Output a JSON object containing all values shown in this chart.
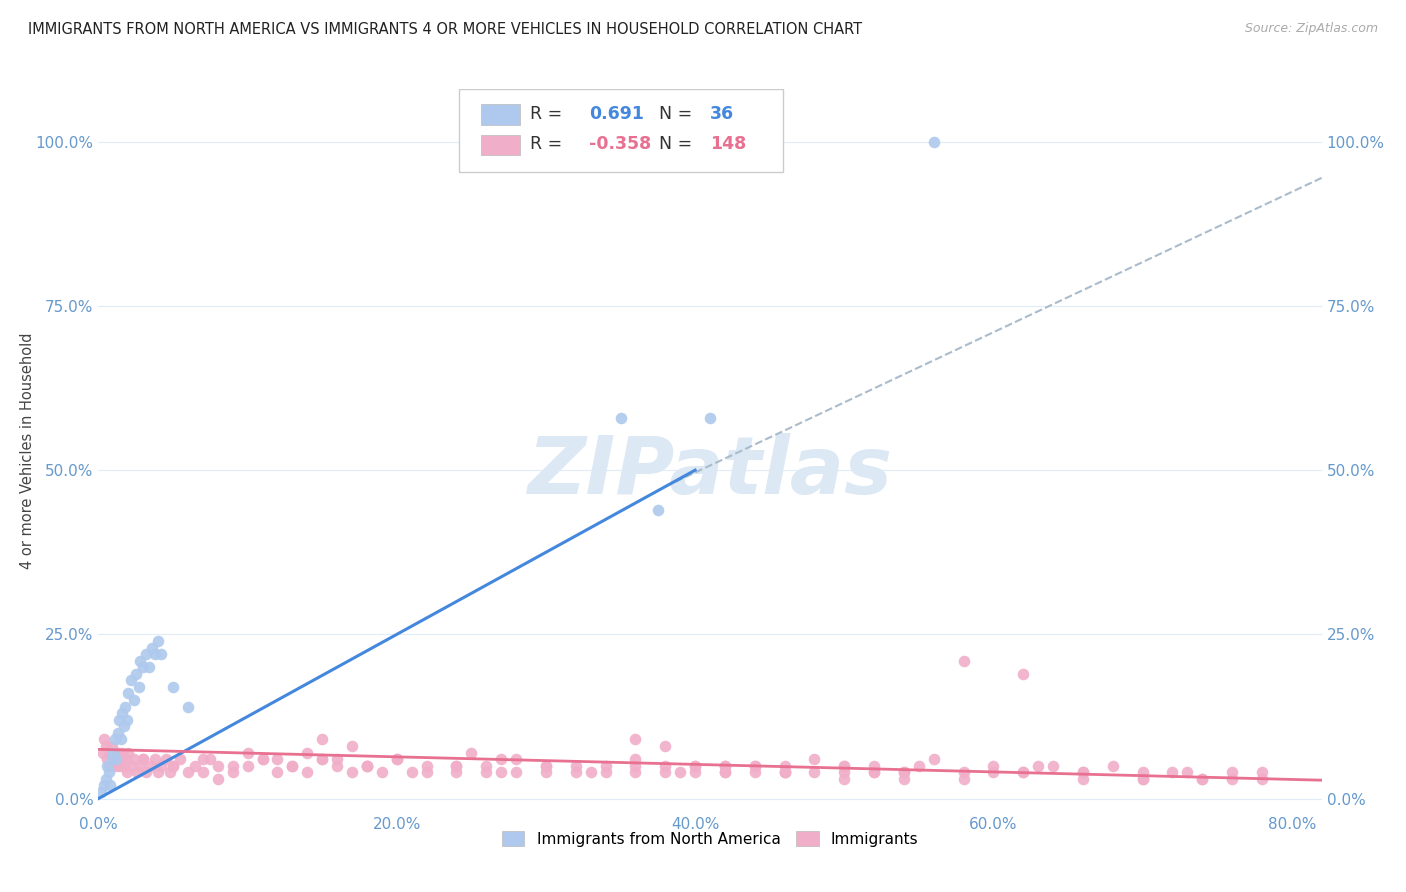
{
  "title": "IMMIGRANTS FROM NORTH AMERICA VS IMMIGRANTS 4 OR MORE VEHICLES IN HOUSEHOLD CORRELATION CHART",
  "source": "Source: ZipAtlas.com",
  "ylabel": "4 or more Vehicles in Household",
  "xlim": [
    0.0,
    0.82
  ],
  "ylim": [
    -0.02,
    1.08
  ],
  "xtick_labels": [
    "0.0%",
    "20.0%",
    "40.0%",
    "60.0%",
    "80.0%"
  ],
  "xtick_values": [
    0.0,
    0.2,
    0.4,
    0.6,
    0.8
  ],
  "ytick_labels": [
    "0.0%",
    "25.0%",
    "50.0%",
    "75.0%",
    "100.0%"
  ],
  "ytick_values": [
    0.0,
    0.25,
    0.5,
    0.75,
    1.0
  ],
  "blue_color": "#aec9ed",
  "pink_color": "#f0aec8",
  "blue_line_color": "#4488dd",
  "pink_line_color": "#e87090",
  "dashed_line_color": "#aabccc",
  "grid_color": "#e0ecf8",
  "tick_label_color": "#6699cc",
  "title_color": "#222222",
  "watermark": "ZIPatlas",
  "watermark_color": "#dce8f4",
  "blue_scatter_x": [
    0.002,
    0.004,
    0.005,
    0.006,
    0.007,
    0.008,
    0.009,
    0.01,
    0.011,
    0.012,
    0.013,
    0.014,
    0.015,
    0.016,
    0.017,
    0.018,
    0.019,
    0.02,
    0.022,
    0.024,
    0.025,
    0.027,
    0.028,
    0.03,
    0.032,
    0.034,
    0.036,
    0.038,
    0.04,
    0.042,
    0.05,
    0.06,
    0.35,
    0.375,
    0.41,
    0.56
  ],
  "blue_scatter_y": [
    0.01,
    0.02,
    0.03,
    0.05,
    0.04,
    0.02,
    0.06,
    0.07,
    0.09,
    0.06,
    0.1,
    0.12,
    0.09,
    0.13,
    0.11,
    0.14,
    0.12,
    0.16,
    0.18,
    0.15,
    0.19,
    0.17,
    0.21,
    0.2,
    0.22,
    0.2,
    0.23,
    0.22,
    0.24,
    0.22,
    0.17,
    0.14,
    0.58,
    0.44,
    0.58,
    1.0
  ],
  "pink_scatter_x": [
    0.003,
    0.004,
    0.005,
    0.006,
    0.007,
    0.008,
    0.009,
    0.01,
    0.011,
    0.012,
    0.013,
    0.014,
    0.015,
    0.016,
    0.017,
    0.018,
    0.019,
    0.02,
    0.022,
    0.024,
    0.026,
    0.028,
    0.03,
    0.032,
    0.035,
    0.038,
    0.04,
    0.042,
    0.045,
    0.048,
    0.05,
    0.055,
    0.06,
    0.065,
    0.07,
    0.075,
    0.08,
    0.09,
    0.1,
    0.11,
    0.12,
    0.13,
    0.14,
    0.15,
    0.16,
    0.17,
    0.18,
    0.19,
    0.2,
    0.22,
    0.24,
    0.26,
    0.28,
    0.3,
    0.32,
    0.34,
    0.36,
    0.38,
    0.4,
    0.42,
    0.44,
    0.46,
    0.48,
    0.5,
    0.52,
    0.54,
    0.56,
    0.58,
    0.6,
    0.62,
    0.64,
    0.66,
    0.68,
    0.7,
    0.72,
    0.74,
    0.76,
    0.78,
    0.58,
    0.62,
    0.36,
    0.38,
    0.25,
    0.27,
    0.15,
    0.17,
    0.4,
    0.42,
    0.44,
    0.46,
    0.5,
    0.52,
    0.55,
    0.6,
    0.63,
    0.66,
    0.7,
    0.73,
    0.76,
    0.03,
    0.05,
    0.07,
    0.09,
    0.11,
    0.13,
    0.15,
    0.18,
    0.21,
    0.24,
    0.27,
    0.3,
    0.33,
    0.36,
    0.39,
    0.42,
    0.46,
    0.5,
    0.54,
    0.58,
    0.62,
    0.66,
    0.7,
    0.74,
    0.78,
    0.08,
    0.1,
    0.12,
    0.14,
    0.16,
    0.18,
    0.2,
    0.22,
    0.24,
    0.26,
    0.28,
    0.3,
    0.32,
    0.34,
    0.36,
    0.38,
    0.4,
    0.42,
    0.44,
    0.46,
    0.48,
    0.5,
    0.52,
    0.54
  ],
  "pink_scatter_y": [
    0.07,
    0.09,
    0.08,
    0.06,
    0.05,
    0.07,
    0.08,
    0.06,
    0.05,
    0.06,
    0.07,
    0.05,
    0.06,
    0.07,
    0.05,
    0.06,
    0.04,
    0.07,
    0.05,
    0.06,
    0.04,
    0.05,
    0.06,
    0.04,
    0.05,
    0.06,
    0.04,
    0.05,
    0.06,
    0.04,
    0.05,
    0.06,
    0.04,
    0.05,
    0.04,
    0.06,
    0.05,
    0.04,
    0.05,
    0.06,
    0.04,
    0.05,
    0.04,
    0.06,
    0.05,
    0.04,
    0.05,
    0.04,
    0.06,
    0.04,
    0.05,
    0.04,
    0.06,
    0.04,
    0.05,
    0.04,
    0.06,
    0.04,
    0.05,
    0.04,
    0.05,
    0.04,
    0.06,
    0.04,
    0.05,
    0.04,
    0.06,
    0.04,
    0.05,
    0.04,
    0.05,
    0.04,
    0.05,
    0.03,
    0.04,
    0.03,
    0.04,
    0.03,
    0.21,
    0.19,
    0.09,
    0.08,
    0.07,
    0.06,
    0.09,
    0.08,
    0.05,
    0.04,
    0.05,
    0.04,
    0.05,
    0.04,
    0.05,
    0.04,
    0.05,
    0.04,
    0.03,
    0.04,
    0.03,
    0.06,
    0.05,
    0.06,
    0.05,
    0.06,
    0.05,
    0.06,
    0.05,
    0.04,
    0.05,
    0.04,
    0.05,
    0.04,
    0.05,
    0.04,
    0.05,
    0.04,
    0.03,
    0.04,
    0.03,
    0.04,
    0.03,
    0.04,
    0.03,
    0.04,
    0.03,
    0.07,
    0.06,
    0.07,
    0.06,
    0.05,
    0.06,
    0.05,
    0.04,
    0.05,
    0.04,
    0.05,
    0.04,
    0.05,
    0.04,
    0.05,
    0.04,
    0.05,
    0.04,
    0.05,
    0.04,
    0.05,
    0.04,
    0.03,
    0.04,
    0.03
  ],
  "blue_line_x0": 0.0,
  "blue_line_x1": 0.4,
  "blue_line_y0": 0.0,
  "blue_line_y1": 0.5,
  "dashed_line_x0": 0.38,
  "dashed_line_x1": 0.82,
  "dashed_line_y0": 0.475,
  "dashed_line_y1": 0.945,
  "pink_line_x0": 0.0,
  "pink_line_x1": 0.82,
  "pink_line_y0": 0.075,
  "pink_line_y1": 0.028,
  "legend_blue_label1": "R = ",
  "legend_blue_R": "0.691",
  "legend_blue_label2": "N = ",
  "legend_blue_N": "36",
  "legend_pink_label1": "R = ",
  "legend_pink_R": "-0.358",
  "legend_pink_label2": "N = ",
  "legend_pink_N": "148"
}
